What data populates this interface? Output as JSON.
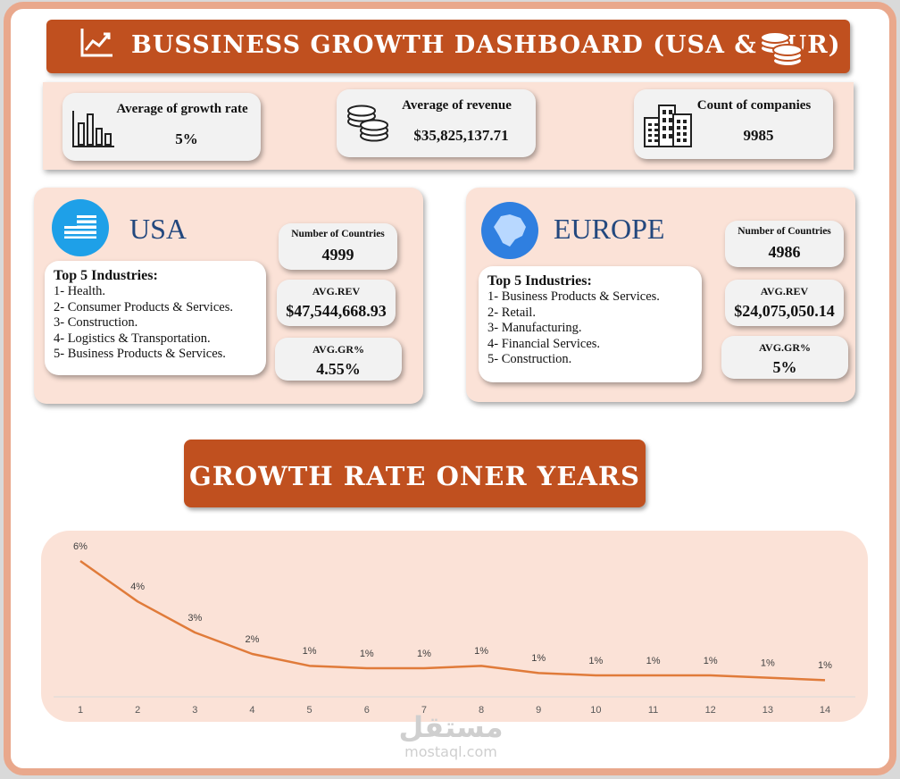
{
  "header": {
    "title": "BUSSINESS GROWTH DASHBOARD (USA & EUR)"
  },
  "kpis": [
    {
      "label": "Average of growth rate",
      "value": "5%"
    },
    {
      "label": "Average of revenue",
      "value": "$35,825,137.71"
    },
    {
      "label": "Count of companies",
      "value": "9985"
    }
  ],
  "regions": [
    {
      "name": "USA",
      "top5_title": "Top 5 Industries:",
      "industries": [
        "1- Health.",
        "2- Consumer Products & Services.",
        "3- Construction.",
        "4- Logistics & Transportation.",
        "5- Business Products & Services."
      ],
      "stats": [
        {
          "label": "Number of Countries",
          "value": "4999"
        },
        {
          "label": "AVG.REV",
          "value": "$47,544,668.93"
        },
        {
          "label": "AVG.GR%",
          "value": "4.55%"
        }
      ]
    },
    {
      "name": "EUROPE",
      "top5_title": "Top 5 Industries:",
      "industries": [
        "1- Business Products & Services.",
        "2- Retail.",
        "3- Manufacturing.",
        "4- Financial Services.",
        "5- Construction."
      ],
      "stats": [
        {
          "label": "Number of Countries",
          "value": "4986"
        },
        {
          "label": "AVG.REV",
          "value": "$24,075,050.14"
        },
        {
          "label": "AVG.GR%",
          "value": "5%"
        }
      ]
    }
  ],
  "chart_data": {
    "type": "line",
    "title": "GROWTH RATE ONER YEARS",
    "x": [
      1,
      2,
      3,
      4,
      5,
      6,
      7,
      8,
      9,
      10,
      11,
      12,
      13,
      14
    ],
    "values": [
      5.7,
      4.0,
      2.7,
      1.8,
      1.3,
      1.2,
      1.2,
      1.3,
      1.0,
      0.9,
      0.9,
      0.9,
      0.8,
      0.7
    ],
    "value_labels": [
      "6%",
      "4%",
      "3%",
      "2%",
      "1%",
      "1%",
      "1%",
      "1%",
      "1%",
      "1%",
      "1%",
      "1%",
      "1%",
      "1%"
    ],
    "color": "#e07b3a",
    "xlim": [
      1,
      14
    ],
    "xticks": [
      1,
      2,
      3,
      4,
      5,
      6,
      7,
      8,
      9,
      10,
      11,
      12,
      13,
      14
    ],
    "ylim": [
      0,
      6
    ]
  },
  "watermark": {
    "arabic": "مستقل",
    "latin": "mostaql.com"
  }
}
